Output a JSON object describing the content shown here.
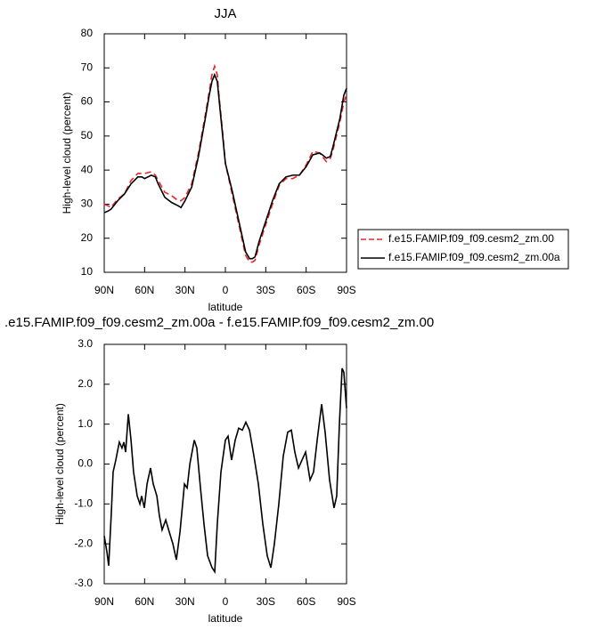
{
  "chart_data": [
    {
      "type": "line",
      "title": "JJA",
      "xlabel": "latitude",
      "ylabel": "High-level cloud (percent)",
      "x": [
        90,
        87,
        85,
        80,
        75,
        70,
        65,
        62,
        60,
        55,
        52,
        50,
        45,
        40,
        35,
        33,
        30,
        25,
        20,
        15,
        12,
        10,
        8,
        6,
        5,
        2,
        0,
        -5,
        -10,
        -15,
        -18,
        -20,
        -22,
        -25,
        -30,
        -35,
        -40,
        -45,
        -50,
        -55,
        -60,
        -65,
        -70,
        -72,
        -75,
        -78,
        -80,
        -85,
        -88,
        -90
      ],
      "series": [
        {
          "name": "f.e15.FAMIP.f09_f09.cesm2_zm.00",
          "color": "#e8262a",
          "linestyle": "dashed",
          "values": [
            30,
            29.5,
            29,
            31.5,
            33,
            37,
            39,
            39,
            39,
            39.5,
            38.5,
            37,
            33.5,
            32.5,
            31,
            31,
            32,
            36,
            45,
            56,
            63,
            68,
            70.5,
            68,
            63,
            51,
            42,
            33,
            24,
            15,
            13,
            13,
            13.5,
            18,
            24,
            30,
            35.5,
            37.5,
            37.5,
            38.5,
            41.5,
            45.5,
            45,
            44,
            42.5,
            43.5,
            46,
            54,
            60,
            62
          ]
        },
        {
          "name": "f.e15.FAMIP.f09_f09.cesm2_zm.00a",
          "color": "#000000",
          "linestyle": "solid",
          "values": [
            27.5,
            28,
            28.5,
            31,
            33,
            36,
            38,
            38,
            37.5,
            38.5,
            38,
            36,
            32,
            30.5,
            29.5,
            29,
            31,
            35,
            44,
            55,
            62,
            66,
            68,
            66,
            62,
            50,
            42,
            34,
            25,
            16,
            14,
            14,
            14.5,
            19,
            25,
            31,
            36,
            38,
            38.5,
            38.5,
            41,
            44.5,
            45,
            44.5,
            43.5,
            44,
            47,
            55,
            62,
            64
          ]
        }
      ],
      "xlim": [
        90,
        -90
      ],
      "ylim": [
        10,
        80
      ],
      "xticks": [
        {
          "value": 90,
          "label": "90N"
        },
        {
          "value": 60,
          "label": "60N"
        },
        {
          "value": 30,
          "label": "30N"
        },
        0,
        {
          "value": -30,
          "label": "30S"
        },
        {
          "value": -60,
          "label": "60S"
        },
        {
          "value": -90,
          "label": "90S"
        }
      ],
      "yticks": [
        10,
        20,
        30,
        40,
        50,
        60,
        70,
        80
      ],
      "legend": "right"
    },
    {
      "type": "line",
      "title": ".e15.FAMIP.f09_f09.cesm2_zm.00a - f.e15.FAMIP.f09_f09.cesm2_zm.00",
      "xlabel": "latitude",
      "ylabel": "High-level cloud (percent)",
      "x": [
        90,
        88,
        86.7,
        84.7,
        83.4,
        81.4,
        78.8,
        76.8,
        75.4,
        74.1,
        72.1,
        70.1,
        68.2,
        65.5,
        63.5,
        62.2,
        60.2,
        58.2,
        55.6,
        53.6,
        50.9,
        49,
        47,
        44.3,
        41.7,
        39,
        36.4,
        33.7,
        30.4,
        28.4,
        26.4,
        23.1,
        21.2,
        18.5,
        15.9,
        13.2,
        9.9,
        7.9,
        6,
        3.3,
        0,
        -2,
        -4.6,
        -7.3,
        -9.9,
        -12.6,
        -15.2,
        -17.9,
        -21.2,
        -24.5,
        -27.8,
        -31.1,
        -33.8,
        -36.4,
        -39.7,
        -43,
        -46.3,
        -49,
        -51.6,
        -54.3,
        -56.9,
        -59.6,
        -62.9,
        -65.5,
        -68.2,
        -71.5,
        -74.1,
        -77.4,
        -80.7,
        -82.7,
        -84.7,
        -86.7,
        -88,
        -90
      ],
      "series": [
        {
          "color": "#000000",
          "linestyle": "solid",
          "values": [
            -1.8,
            -2.2,
            -2.55,
            -1.2,
            -0.2,
            0.1,
            0.55,
            0.4,
            0.55,
            0.3,
            1.25,
            0.6,
            -0.2,
            -0.8,
            -1.0,
            -0.8,
            -1.1,
            -0.5,
            -0.1,
            -0.5,
            -0.8,
            -1.3,
            -1.65,
            -1.4,
            -1.7,
            -2.0,
            -2.4,
            -1.7,
            -0.5,
            -0.6,
            0.0,
            0.6,
            0.4,
            -0.6,
            -1.5,
            -2.3,
            -2.6,
            -2.7,
            -1.5,
            -0.2,
            0.6,
            0.7,
            0.1,
            0.6,
            0.9,
            0.85,
            1.05,
            0.85,
            0.2,
            -0.5,
            -1.5,
            -2.3,
            -2.6,
            -2.0,
            -1.0,
            0.2,
            0.8,
            0.85,
            0.3,
            -0.1,
            0.1,
            0.3,
            -0.4,
            -0.2,
            0.6,
            1.5,
            0.8,
            -0.4,
            -1.1,
            -0.8,
            1.0,
            2.4,
            2.3,
            1.4
          ]
        }
      ],
      "xlim": [
        90,
        -90
      ],
      "ylim": [
        -3,
        3
      ],
      "xticks": [
        {
          "value": 90,
          "label": "90N"
        },
        {
          "value": 60,
          "label": "60N"
        },
        {
          "value": 30,
          "label": "30N"
        },
        0,
        {
          "value": -30,
          "label": "30S"
        },
        {
          "value": -60,
          "label": "60S"
        },
        {
          "value": -90,
          "label": "90S"
        }
      ],
      "yticks": [
        {
          "value": -3,
          "label": "-3.0"
        },
        {
          "value": -2,
          "label": "-2.0"
        },
        {
          "value": -1,
          "label": "-1.0"
        },
        {
          "value": 0,
          "label": "0.0"
        },
        {
          "value": 1,
          "label": "1.0"
        },
        {
          "value": 2,
          "label": "2.0"
        },
        {
          "value": 3,
          "label": "3.0"
        }
      ]
    }
  ]
}
